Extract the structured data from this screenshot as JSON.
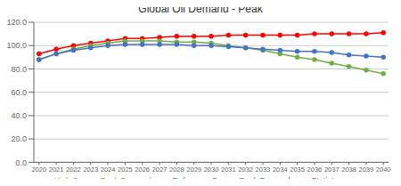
{
  "chart_data": {
    "type": "line",
    "title": "Global Oil Demand - Peak",
    "x": [
      2020,
      2021,
      2022,
      2023,
      2024,
      2025,
      2026,
      2027,
      2028,
      2029,
      2030,
      2031,
      2032,
      2033,
      2034,
      2035,
      2036,
      2037,
      2038,
      2039,
      2040
    ],
    "series": [
      {
        "name": "Statista",
        "color": "#FF0000",
        "values": [
          93,
          97,
          100,
          102,
          104,
          106,
          106,
          107,
          108,
          108,
          108,
          109,
          109,
          109,
          109,
          109,
          110,
          110,
          110,
          110,
          111
        ]
      },
      {
        "name": "High Case – Peak Demand",
        "color": "#70AD47",
        "values": [
          88,
          93,
          97,
          100,
          102,
          104,
          104,
          104,
          103,
          103,
          102,
          100,
          98,
          96,
          93,
          90,
          88,
          85,
          82,
          79,
          76
        ]
      },
      {
        "name": "Reference Case – Peak Demand",
        "color": "#4472C4",
        "values": [
          88,
          93,
          96,
          98,
          100,
          101,
          101,
          101,
          101,
          100,
          100,
          99,
          98,
          97,
          96,
          95,
          95,
          94,
          92,
          91,
          90
        ]
      }
    ],
    "xlim": [
      2019.7,
      2040.3
    ],
    "xticks": [
      2020,
      2021,
      2022,
      2023,
      2024,
      2025,
      2026,
      2027,
      2028,
      2029,
      2030,
      2031,
      2032,
      2033,
      2034,
      2035,
      2036,
      2037,
      2038,
      2039,
      2040
    ],
    "ylim": [
      0,
      120
    ],
    "yticks": [
      {
        "value": 0,
        "label": "0.0"
      },
      {
        "value": 20,
        "label": "20.0"
      },
      {
        "value": 40,
        "label": "40.0"
      },
      {
        "value": 60,
        "label": "60.0"
      },
      {
        "value": 80,
        "label": "80.0"
      },
      {
        "value": 100,
        "label": "100.0"
      },
      {
        "value": 120,
        "label": "120.0"
      }
    ],
    "grid": "y",
    "legend": "bottom",
    "marker": "circle"
  }
}
